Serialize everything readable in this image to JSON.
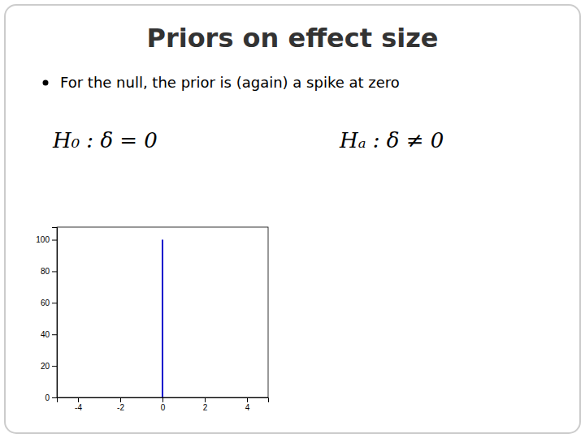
{
  "chart_data": {
    "type": "spike",
    "title": "Priors on effect size",
    "annotations": [
      "For the null, the prior is (again) a spike at zero",
      "H₀ : δ = 0",
      "Hₐ : δ ≠ 0"
    ],
    "x": [
      0
    ],
    "values": [
      100
    ],
    "color": "#0000CC",
    "xlim": [
      -5,
      5
    ],
    "xticks": [
      -4,
      -2,
      0,
      2,
      4
    ],
    "ylim": [
      0,
      108
    ],
    "yticks": [
      0,
      20,
      40,
      60,
      80,
      100
    ],
    "grid": false
  }
}
